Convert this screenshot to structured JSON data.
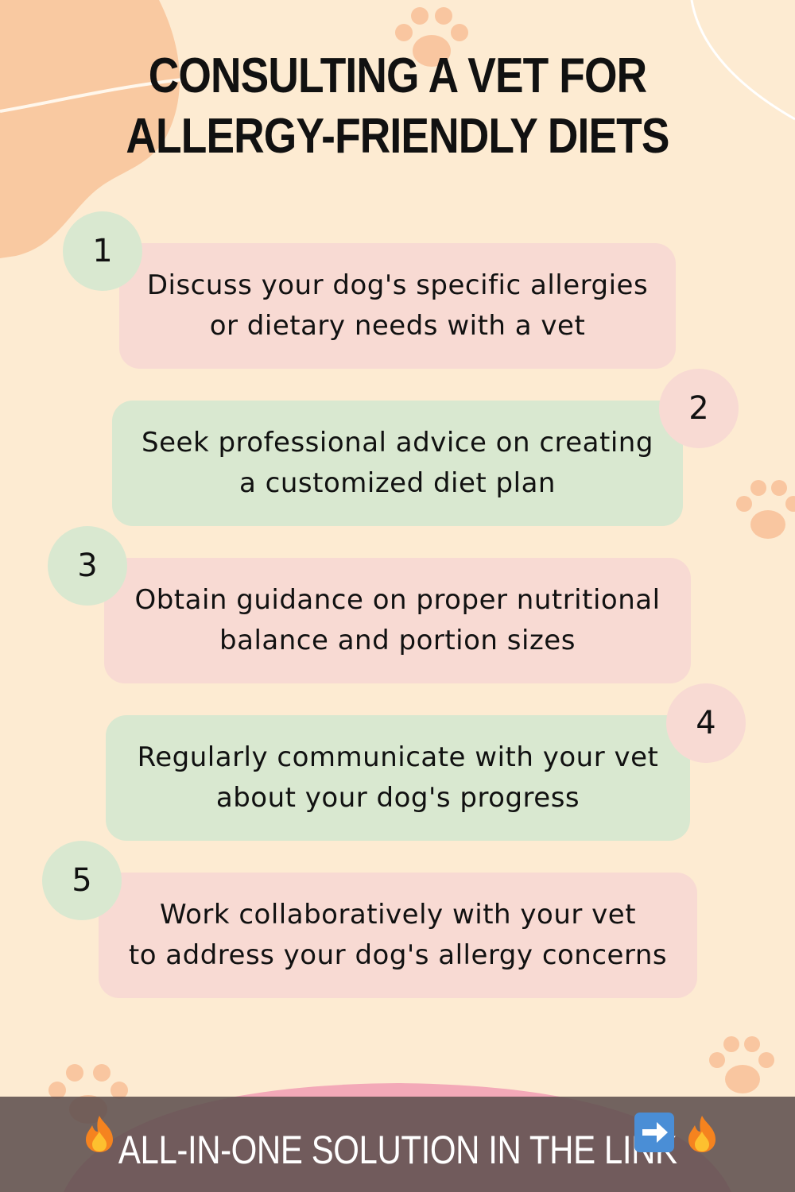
{
  "title": "CONSULTING A VET FOR ALLERGY-FRIENDLY DIETS",
  "colors": {
    "background": "#fdebd2",
    "accent_peach": "#f9c9a1",
    "card_pink": "#f8dad3",
    "card_green": "#d9e8d0",
    "banner": "#5f504e"
  },
  "steps": [
    {
      "number": "1",
      "text": "Discuss your dog's specific allergies\nor dietary needs with a vet"
    },
    {
      "number": "2",
      "text": "Seek professional advice on creating\na customized diet plan"
    },
    {
      "number": "3",
      "text": "Obtain guidance on proper nutritional\nbalance and portion sizes"
    },
    {
      "number": "4",
      "text": "Regularly communicate with your vet\nabout your dog's progress"
    },
    {
      "number": "5",
      "text": "Work collaboratively with your vet\nto address your dog's allergy concerns"
    }
  ],
  "banner": {
    "text": "ALL-IN-ONE SOLUTION IN THE LINK",
    "icons": [
      "fire-icon",
      "arrow-right-icon",
      "fire-icon"
    ]
  }
}
